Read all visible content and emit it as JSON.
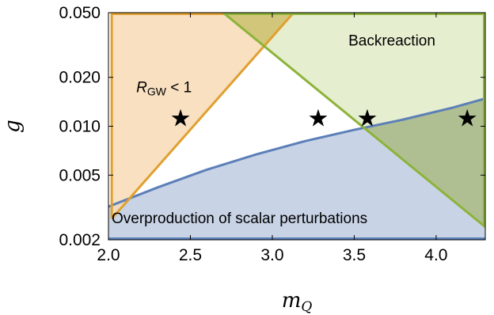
{
  "chart_data": {
    "type": "region",
    "xlabel_main": "m",
    "xlabel_sub": "Q",
    "ylabel": "g",
    "xlim": [
      2.0,
      4.3
    ],
    "ylim": [
      0.002,
      0.05
    ],
    "yscale": "log",
    "xticks": [
      {
        "value": 2.0,
        "label": "2.0"
      },
      {
        "value": 2.5,
        "label": "2.5"
      },
      {
        "value": 3.0,
        "label": "3.0"
      },
      {
        "value": 3.5,
        "label": "3.5"
      },
      {
        "value": 4.0,
        "label": "4.0"
      }
    ],
    "yticks": [
      {
        "value": 0.002,
        "label": "0.002"
      },
      {
        "value": 0.005,
        "label": "0.005"
      },
      {
        "value": 0.01,
        "label": "0.010"
      },
      {
        "value": 0.02,
        "label": "0.020"
      },
      {
        "value": 0.05,
        "label": "0.050"
      }
    ],
    "regions": [
      {
        "label": "Overproduction of scalar perturbations",
        "fill": "#c8d3e6",
        "stroke": "#5c7fb8",
        "boundary_m": [
          2.0,
          2.3,
          2.6,
          2.9,
          3.2,
          3.5,
          3.8,
          4.1,
          4.3
        ],
        "boundary_g": [
          0.0032,
          0.0042,
          0.0054,
          0.0067,
          0.0081,
          0.0095,
          0.011,
          0.013,
          0.0148
        ]
      },
      {
        "label_main": "R",
        "label_sub": "GW",
        "label_rest": " < 1",
        "fill": "#f7dbb6",
        "stroke": "#e0a030",
        "edge_points": [
          {
            "m": 2.02,
            "g": 0.0027
          },
          {
            "m": 3.13,
            "g": 0.05
          }
        ]
      },
      {
        "label": "Backreaction",
        "fill": "#e1ebc6",
        "stroke": "#8db33a",
        "edge_points": [
          {
            "m": 2.7,
            "g": 0.05
          },
          {
            "m": 4.3,
            "g": 0.0024
          }
        ]
      }
    ],
    "markers": [
      {
        "m": 2.44,
        "g": 0.0113
      },
      {
        "m": 3.28,
        "g": 0.0113
      },
      {
        "m": 3.58,
        "g": 0.0113
      },
      {
        "m": 4.19,
        "g": 0.0113
      }
    ],
    "marker_symbol": "★"
  }
}
